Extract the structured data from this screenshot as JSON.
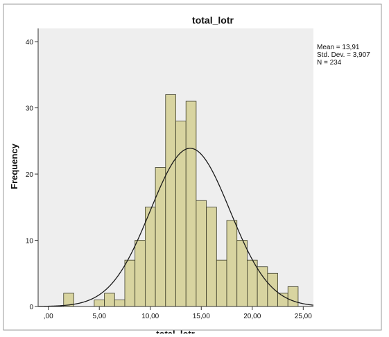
{
  "chart_data": {
    "type": "bar",
    "title": "total_lotr",
    "xlabel": "total_lotr",
    "ylabel": "Frequency",
    "bin_width": 1,
    "bins": [
      {
        "start": 1.5,
        "end": 2.5,
        "count": 2
      },
      {
        "start": 4.5,
        "end": 5.5,
        "count": 1
      },
      {
        "start": 5.5,
        "end": 6.5,
        "count": 2
      },
      {
        "start": 6.5,
        "end": 7.5,
        "count": 1
      },
      {
        "start": 7.5,
        "end": 8.5,
        "count": 7
      },
      {
        "start": 8.5,
        "end": 9.5,
        "count": 10
      },
      {
        "start": 9.5,
        "end": 10.5,
        "count": 15
      },
      {
        "start": 10.5,
        "end": 11.5,
        "count": 21
      },
      {
        "start": 11.5,
        "end": 12.5,
        "count": 32
      },
      {
        "start": 12.5,
        "end": 13.5,
        "count": 28
      },
      {
        "start": 13.5,
        "end": 14.5,
        "count": 31
      },
      {
        "start": 14.5,
        "end": 15.5,
        "count": 16
      },
      {
        "start": 15.5,
        "end": 16.5,
        "count": 15
      },
      {
        "start": 16.5,
        "end": 17.5,
        "count": 7
      },
      {
        "start": 17.5,
        "end": 18.5,
        "count": 13
      },
      {
        "start": 18.5,
        "end": 19.5,
        "count": 10
      },
      {
        "start": 19.5,
        "end": 20.5,
        "count": 7
      },
      {
        "start": 20.5,
        "end": 21.5,
        "count": 6
      },
      {
        "start": 21.5,
        "end": 22.5,
        "count": 5
      },
      {
        "start": 22.5,
        "end": 23.5,
        "count": 2
      },
      {
        "start": 23.5,
        "end": 24.5,
        "count": 3
      }
    ],
    "normal_curve": {
      "mean": 13.91,
      "std_dev": 3.907,
      "n": 234
    },
    "xlim": [
      -1,
      26
    ],
    "ylim": [
      0,
      42
    ],
    "x_ticks": [
      {
        "value": 0,
        "label": ",00"
      },
      {
        "value": 5,
        "label": "5,00"
      },
      {
        "value": 10,
        "label": "10,00"
      },
      {
        "value": 15,
        "label": "15,00"
      },
      {
        "value": 20,
        "label": "20,00"
      },
      {
        "value": 25,
        "label": "25,00"
      }
    ],
    "y_ticks": [
      {
        "value": 0,
        "label": "0"
      },
      {
        "value": 10,
        "label": "10"
      },
      {
        "value": 20,
        "label": "20"
      },
      {
        "value": 30,
        "label": "30"
      },
      {
        "value": 40,
        "label": "40"
      }
    ],
    "stats_legend": {
      "mean_text": "Mean = 13,91",
      "std_text": "Std. Dev. = 3,907",
      "n_text": "N = 234",
      "placement": "top-right"
    },
    "grid": false,
    "colors": {
      "bar_fill": "#d8d4a0",
      "bar_stroke": "#3c3c28",
      "plot_background": "#eeeeee",
      "curve": "#1a1a1a",
      "frame": "#999999"
    }
  }
}
